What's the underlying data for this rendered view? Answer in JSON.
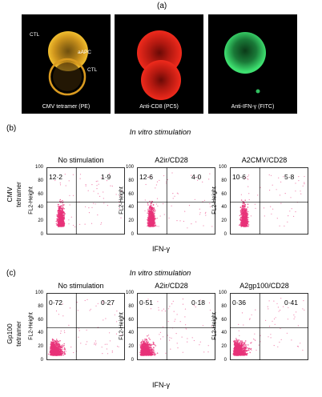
{
  "panel_a": {
    "label": "(a)",
    "images": [
      {
        "caption": "CMV tetramer (PE)",
        "cell_labels": [
          "CTL",
          "aAPC",
          "CTL"
        ],
        "color": "#e0a020"
      },
      {
        "caption": "Anti-CD8 (PC5)",
        "cell_labels": [],
        "color": "#e8231a"
      },
      {
        "caption": "Anti-IFN-γ (FITC)",
        "cell_labels": [],
        "color": "#34d060"
      }
    ]
  },
  "panel_b": {
    "label": "(b)",
    "title": "In vitro stimulation",
    "ylabel_line1": "CMV",
    "ylabel_line2": "tetramer",
    "xlabel": "IFN-γ",
    "fl2": "FL2-Height",
    "ticks": [
      "100",
      "80",
      "60",
      "40",
      "20",
      "0"
    ]
  },
  "panel_c": {
    "label": "(c)",
    "title": "In vitro stimulation",
    "ylabel_line1": "Gp100",
    "ylabel_line2": "tetramer",
    "xlabel": "IFN-γ",
    "fl2": "FL2-Height",
    "ticks": [
      "100",
      "80",
      "60",
      "40",
      "20",
      "0"
    ]
  },
  "chart_data": [
    {
      "type": "scatter",
      "panel": "b",
      "plots": [
        {
          "title": "No stimulation",
          "upper_left": "12·2",
          "upper_right": "1·9"
        },
        {
          "title": "A2ir/CD28",
          "upper_left": "12·6",
          "upper_right": "4·0"
        },
        {
          "title": "A2CMV/CD28",
          "upper_left": "10·6",
          "upper_right": "5·8"
        }
      ],
      "ylim": [
        0,
        100
      ],
      "dot_color": "#e8337a"
    },
    {
      "type": "scatter",
      "panel": "c",
      "plots": [
        {
          "title": "No stimulation",
          "upper_left": "0·72",
          "upper_right": "0·27"
        },
        {
          "title": "A2ir/CD28",
          "upper_left": "0·51",
          "upper_right": "0·18"
        },
        {
          "title": "A2gp100/CD28",
          "upper_left": "0·36",
          "upper_right": "0·41"
        }
      ],
      "ylim": [
        0,
        100
      ],
      "dot_color": "#e8337a"
    }
  ]
}
